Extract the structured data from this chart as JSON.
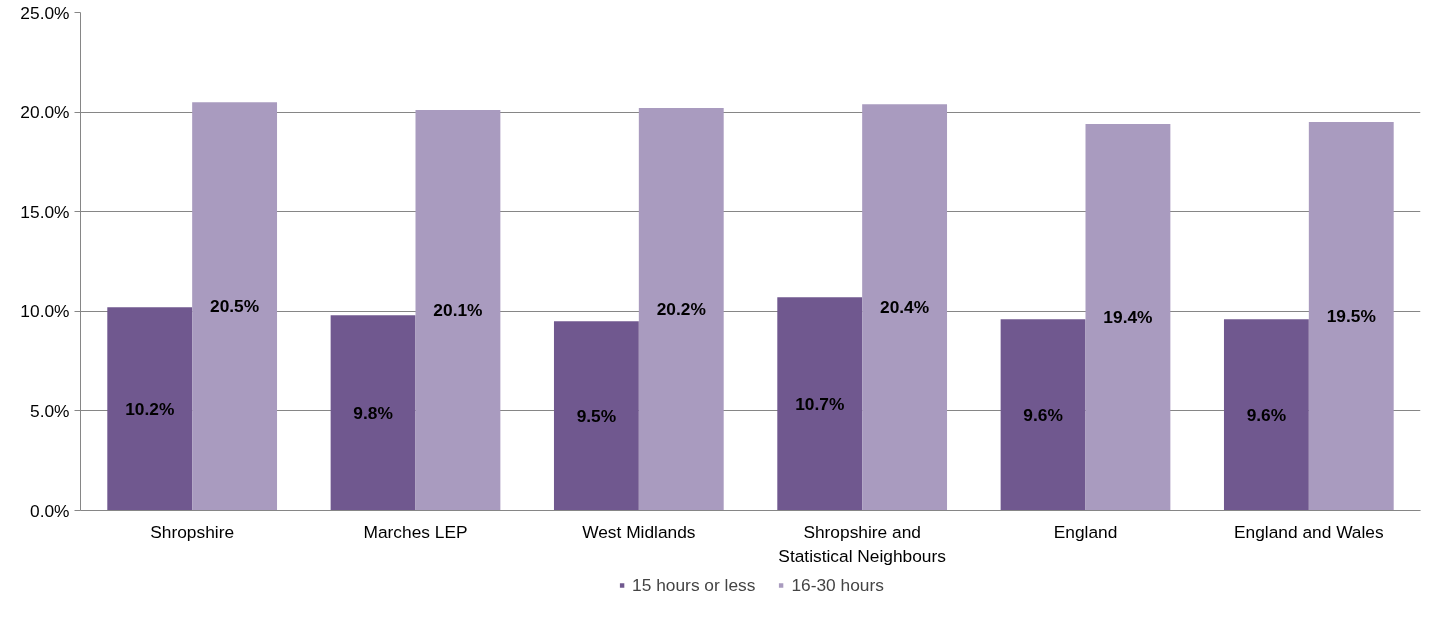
{
  "chart_data": {
    "type": "bar",
    "categories": [
      "Shropshire",
      "Marches LEP",
      "West Midlands",
      "Shropshire and Statistical Neighbours",
      "England",
      "England and Wales"
    ],
    "series": [
      {
        "name": "15 hours or less",
        "color": "#70588f",
        "values": [
          10.2,
          9.8,
          9.5,
          10.7,
          9.6,
          9.6
        ],
        "value_labels": [
          "10.2%",
          "9.8%",
          "9.5%",
          "10.7%",
          "9.6%",
          "9.6%"
        ]
      },
      {
        "name": "16-30 hours",
        "color": "#a99bbf",
        "values": [
          20.5,
          20.1,
          20.2,
          20.4,
          19.4,
          19.5
        ],
        "value_labels": [
          "20.5%",
          "20.1%",
          "20.2%",
          "20.4%",
          "19.4%",
          "19.5%"
        ]
      }
    ],
    "ylim": [
      0,
      25
    ],
    "yticks": [
      {
        "value": 0,
        "label": "0.0%"
      },
      {
        "value": 5,
        "label": "5.0%"
      },
      {
        "value": 10,
        "label": "10.0%"
      },
      {
        "value": 15,
        "label": "15.0%"
      },
      {
        "value": 20,
        "label": "20.0%"
      },
      {
        "value": 25,
        "label": "25.0%"
      }
    ],
    "grid": "y",
    "legend": "bottom"
  }
}
